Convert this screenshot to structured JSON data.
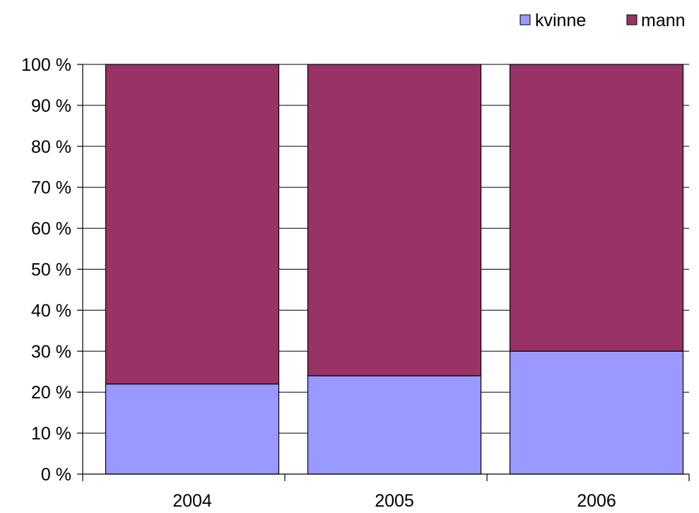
{
  "chart_data": {
    "type": "bar",
    "stacked": true,
    "percent_stacked": true,
    "categories": [
      "2004",
      "2005",
      "2006"
    ],
    "series": [
      {
        "name": "kvinne",
        "color": "#9999ff",
        "values": [
          22,
          24,
          30
        ]
      },
      {
        "name": "mann",
        "color": "#993366",
        "values": [
          78,
          76,
          70
        ]
      }
    ],
    "ylim": [
      0,
      100
    ],
    "yticks": [
      0,
      10,
      20,
      30,
      40,
      50,
      60,
      70,
      80,
      90,
      100
    ],
    "ytick_labels": [
      "0 %",
      "10 %",
      "20 %",
      "30 %",
      "40 %",
      "50 %",
      "60 %",
      "70 %",
      "80 %",
      "90 %",
      "100 %"
    ],
    "grid": true,
    "legend_position": "top-right",
    "title": "",
    "xlabel": "",
    "ylabel": ""
  }
}
